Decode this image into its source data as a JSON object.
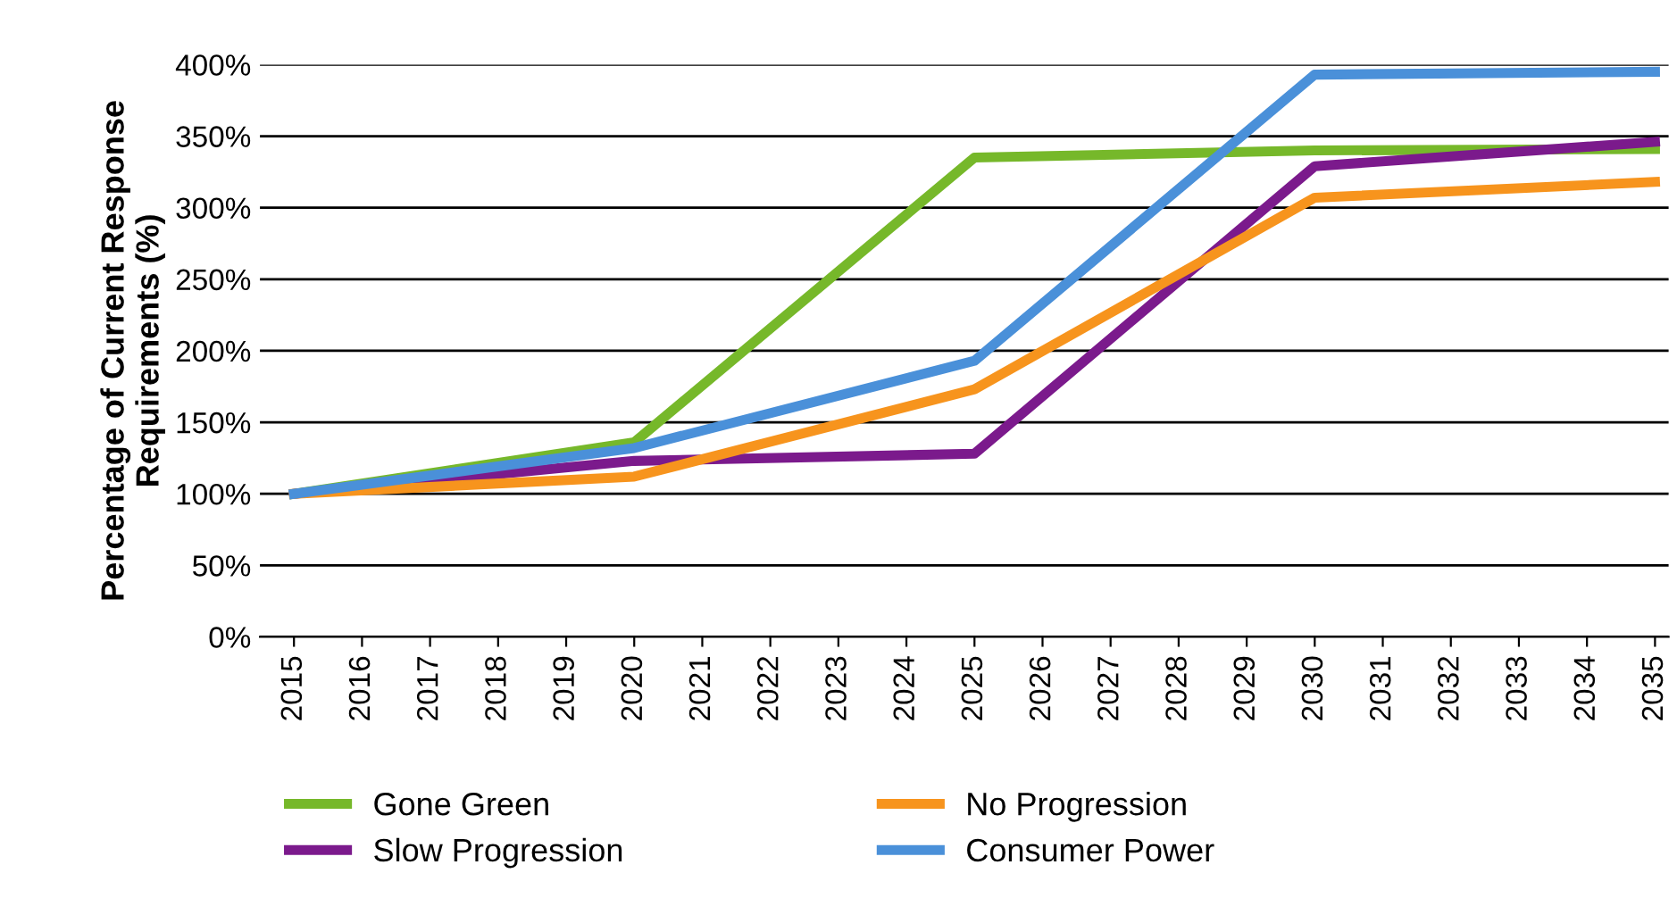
{
  "chart_data": {
    "type": "line",
    "ylabel": "Percentage of Current Response Requirements (%)",
    "x": [
      2015,
      2020,
      2025,
      2030,
      2035
    ],
    "series": [
      {
        "name": "Gone Green",
        "color": "#76b82a",
        "values": [
          100,
          136,
          335,
          340,
          341
        ]
      },
      {
        "name": "Slow Progression",
        "color": "#7b1a8c",
        "values": [
          100,
          123,
          128,
          329,
          346
        ]
      },
      {
        "name": "No Progression",
        "color": "#f7941d",
        "values": [
          100,
          112,
          173,
          307,
          318
        ]
      },
      {
        "name": "Consumer Power",
        "color": "#4a90d9",
        "values": [
          100,
          132,
          193,
          393,
          395
        ]
      }
    ],
    "xlim": [
      2014.5,
      2035.2
    ],
    "xticks": [
      2015,
      2016,
      2017,
      2018,
      2019,
      2020,
      2021,
      2022,
      2023,
      2024,
      2025,
      2026,
      2027,
      2028,
      2029,
      2030,
      2031,
      2032,
      2033,
      2034,
      2035
    ],
    "ylim": [
      0,
      400
    ],
    "yticks": [
      {
        "value": 0,
        "label": "0%"
      },
      {
        "value": 50,
        "label": "50%"
      },
      {
        "value": 100,
        "label": "100%"
      },
      {
        "value": 150,
        "label": "150%"
      },
      {
        "value": 200,
        "label": "200%"
      },
      {
        "value": 250,
        "label": "250%"
      },
      {
        "value": 300,
        "label": "300%"
      },
      {
        "value": 350,
        "label": "350%"
      },
      {
        "value": 400,
        "label": "400%"
      }
    ],
    "grid": "y",
    "legend": "bottom",
    "marker": "none",
    "line_style": "solid"
  }
}
